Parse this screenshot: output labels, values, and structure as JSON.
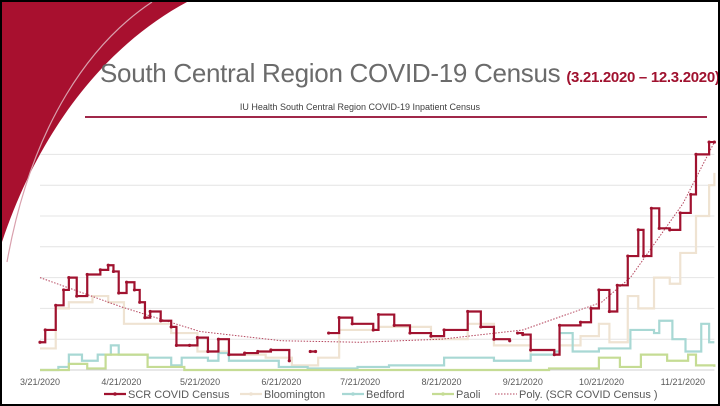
{
  "slide": {
    "title": "South Central Region COVID-19 Census",
    "title_dates": "(3.21.2020 – 12.3.2020)",
    "accent_color": "#a0122f"
  },
  "chart_data": {
    "type": "line",
    "title": "IU Health South Central Region COVID-19 Inpatient Census",
    "xlabel": "",
    "ylabel": "",
    "y_tick_labels_shown": false,
    "ylim_gridline_units": [
      0,
      7
    ],
    "grid": true,
    "legend_position": "bottom",
    "x_ticks": [
      "3/21/2020",
      "4/21/2020",
      "5/21/2020",
      "6/21/2020",
      "7/21/2020",
      "8/21/2020",
      "9/21/2020",
      "10/21/2020",
      "11/21/2020"
    ],
    "xlim": [
      "2020-03-21",
      "2020-12-03"
    ],
    "series": [
      {
        "name": "SCR COVID Census",
        "color": "#a0122f",
        "style": "line-markers",
        "points": [
          [
            "2020-03-21",
            0.9
          ],
          [
            "2020-03-23",
            1.3
          ],
          [
            "2020-03-27",
            2.1
          ],
          [
            "2020-03-30",
            2.6
          ],
          [
            "2020-04-01",
            3.0
          ],
          [
            "2020-04-04",
            2.4
          ],
          [
            "2020-04-08",
            3.1
          ],
          [
            "2020-04-13",
            3.25
          ],
          [
            "2020-04-16",
            3.4
          ],
          [
            "2020-04-18",
            3.2
          ],
          [
            "2020-04-20",
            2.5
          ],
          [
            "2020-04-23",
            2.85
          ],
          [
            "2020-04-26",
            2.6
          ],
          [
            "2020-04-28",
            2.2
          ],
          [
            "2020-04-30",
            1.7
          ],
          [
            "2020-05-02",
            1.9
          ],
          [
            "2020-05-06",
            1.6
          ],
          [
            "2020-05-10",
            1.4
          ],
          [
            "2020-05-12",
            0.8
          ],
          [
            "2020-05-17",
            0.8
          ],
          [
            "2020-05-20",
            1.05
          ],
          [
            "2020-05-24",
            0.6
          ],
          [
            "2020-05-28",
            1.0
          ],
          [
            "2020-06-01",
            0.5
          ],
          [
            "2020-06-07",
            0.55
          ],
          [
            "2020-06-12",
            0.6
          ],
          [
            "2020-06-17",
            0.65
          ],
          [
            "2020-06-24",
            0.3
          ],
          null,
          [
            "2020-07-02",
            0.6
          ],
          [
            "2020-07-04",
            0.6
          ],
          null,
          [
            "2020-07-09",
            1.2
          ],
          [
            "2020-07-13",
            1.7
          ],
          [
            "2020-07-18",
            1.5
          ],
          [
            "2020-07-26",
            1.3
          ],
          [
            "2020-07-28",
            1.8
          ],
          [
            "2020-08-03",
            1.45
          ],
          [
            "2020-08-09",
            1.2
          ],
          [
            "2020-08-17",
            1.1
          ],
          [
            "2020-08-22",
            1.3
          ],
          [
            "2020-08-31",
            1.9
          ],
          [
            "2020-09-05",
            1.4
          ],
          [
            "2020-09-10",
            1.0
          ],
          [
            "2020-09-16",
            0.95
          ],
          null,
          [
            "2020-09-19",
            1.2
          ],
          [
            "2020-09-21",
            1.15
          ],
          [
            "2020-09-24",
            0.65
          ],
          [
            "2020-10-03",
            0.5
          ],
          [
            "2020-10-05",
            1.45
          ],
          [
            "2020-10-13",
            1.55
          ],
          [
            "2020-10-17",
            2.0
          ],
          [
            "2020-10-20",
            2.6
          ],
          [
            "2020-10-24",
            1.9
          ],
          [
            "2020-10-27",
            2.75
          ],
          [
            "2020-10-31",
            3.7
          ],
          [
            "2020-11-04",
            4.55
          ],
          [
            "2020-11-06",
            3.7
          ],
          [
            "2020-11-09",
            5.25
          ],
          [
            "2020-11-12",
            4.6
          ],
          [
            "2020-11-16",
            4.55
          ],
          [
            "2020-11-20",
            5.1
          ],
          [
            "2020-11-24",
            5.7
          ],
          [
            "2020-11-26",
            7.0
          ],
          [
            "2020-12-01",
            7.4
          ],
          [
            "2020-12-03",
            7.4
          ]
        ]
      },
      {
        "name": "Bloomington",
        "color": "#efe3d2",
        "style": "line",
        "points": [
          [
            "2020-03-21",
            0.7
          ],
          [
            "2020-03-27",
            2.0
          ],
          [
            "2020-04-01",
            2.2
          ],
          [
            "2020-04-10",
            2.4
          ],
          [
            "2020-04-16",
            2.2
          ],
          [
            "2020-04-22",
            1.5
          ],
          [
            "2020-05-01",
            1.5
          ],
          [
            "2020-05-10",
            1.2
          ],
          [
            "2020-05-20",
            0.6
          ],
          [
            "2020-06-01",
            0.5
          ],
          [
            "2020-06-15",
            0.4
          ],
          [
            "2020-06-25",
            0.15
          ],
          [
            "2020-07-05",
            0.4
          ],
          [
            "2020-07-13",
            1.3
          ],
          [
            "2020-07-28",
            1.4
          ],
          [
            "2020-08-17",
            1.0
          ],
          [
            "2020-08-31",
            1.5
          ],
          [
            "2020-09-10",
            0.8
          ],
          [
            "2020-09-24",
            0.5
          ],
          [
            "2020-10-05",
            0.8
          ],
          [
            "2020-10-13",
            1.1
          ],
          [
            "2020-10-20",
            1.5
          ],
          [
            "2020-10-24",
            0.9
          ],
          [
            "2020-10-31",
            2.4
          ],
          [
            "2020-11-04",
            2.0
          ],
          [
            "2020-11-10",
            3.0
          ],
          [
            "2020-11-16",
            2.8
          ],
          [
            "2020-11-20",
            3.8
          ],
          [
            "2020-11-26",
            5.0
          ],
          [
            "2020-12-01",
            6.0
          ],
          [
            "2020-12-03",
            6.4
          ]
        ]
      },
      {
        "name": "Bedford",
        "color": "#a8d8d4",
        "style": "line",
        "points": [
          [
            "2020-03-21",
            0.0
          ],
          [
            "2020-03-28",
            0.1
          ],
          [
            "2020-04-01",
            0.5
          ],
          [
            "2020-04-06",
            0.3
          ],
          [
            "2020-04-12",
            0.5
          ],
          [
            "2020-04-17",
            0.8
          ],
          [
            "2020-04-20",
            0.5
          ],
          [
            "2020-05-01",
            0.4
          ],
          [
            "2020-05-10",
            0.15
          ],
          [
            "2020-05-14",
            0.4
          ],
          [
            "2020-05-24",
            0.3
          ],
          [
            "2020-05-28",
            0.55
          ],
          [
            "2020-06-01",
            0.3
          ],
          [
            "2020-06-20",
            0.1
          ],
          [
            "2020-07-01",
            0.05
          ],
          [
            "2020-07-20",
            0.1
          ],
          [
            "2020-08-01",
            0.15
          ],
          [
            "2020-08-22",
            0.4
          ],
          [
            "2020-09-10",
            0.3
          ],
          [
            "2020-09-24",
            0.5
          ],
          [
            "2020-10-03",
            0.6
          ],
          [
            "2020-10-05",
            1.2
          ],
          [
            "2020-10-10",
            0.6
          ],
          [
            "2020-10-20",
            0.7
          ],
          [
            "2020-11-01",
            1.3
          ],
          [
            "2020-11-10",
            1.2
          ],
          [
            "2020-11-12",
            1.6
          ],
          [
            "2020-11-17",
            1.0
          ],
          [
            "2020-11-22",
            0.6
          ],
          [
            "2020-11-28",
            1.5
          ],
          [
            "2020-12-01",
            0.9
          ],
          [
            "2020-12-03",
            0.9
          ]
        ]
      },
      {
        "name": "Paoli",
        "color": "#c5dc94",
        "style": "line",
        "points": [
          [
            "2020-03-21",
            0.0
          ],
          [
            "2020-04-01",
            0.2
          ],
          [
            "2020-04-08",
            0.05
          ],
          [
            "2020-04-15",
            0.5
          ],
          [
            "2020-04-22",
            0.5
          ],
          [
            "2020-05-01",
            0.1
          ],
          [
            "2020-05-10",
            0.1
          ],
          [
            "2020-05-15",
            0.0
          ],
          [
            "2020-06-01",
            0.0
          ],
          [
            "2020-10-01",
            0.05
          ],
          [
            "2020-10-20",
            0.4
          ],
          [
            "2020-10-28",
            0.1
          ],
          [
            "2020-11-05",
            0.5
          ],
          [
            "2020-11-15",
            0.3
          ],
          [
            "2020-11-23",
            0.5
          ],
          [
            "2020-11-26",
            0.15
          ],
          [
            "2020-12-03",
            0.1
          ]
        ]
      },
      {
        "name": "Poly. (SCR COVID Census )",
        "color": "#b5475f",
        "style": "dotted",
        "points": [
          [
            "2020-03-21",
            3.0
          ],
          [
            "2020-04-21",
            2.05
          ],
          [
            "2020-05-21",
            1.25
          ],
          [
            "2020-06-21",
            0.95
          ],
          [
            "2020-07-21",
            0.9
          ],
          [
            "2020-08-21",
            1.0
          ],
          [
            "2020-09-21",
            1.3
          ],
          [
            "2020-10-21",
            2.2
          ],
          [
            "2020-11-01",
            3.0
          ],
          [
            "2020-11-21",
            5.4
          ],
          [
            "2020-12-03",
            7.4
          ]
        ]
      }
    ]
  }
}
